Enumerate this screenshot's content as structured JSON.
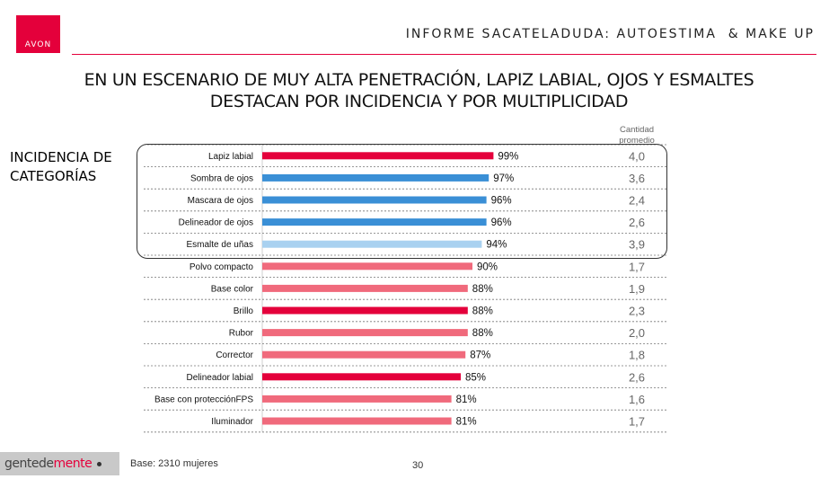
{
  "brand": {
    "logo_text": "AVON",
    "accent": "#e4003b"
  },
  "header": {
    "title": "INFORME SACATELADUDA: AUTOESTIMA  & MAKE UP"
  },
  "main_title": {
    "line1": "EN UN ESCENARIO DE MUY ALTA PENETRACIÓN, LAPIZ LABIAL, OJOS Y ESMALTES",
    "line2": "DESTACAN POR INCIDENCIA Y POR MULTIPLICIDAD"
  },
  "section_label": {
    "line1": "INCIDENCIA DE",
    "line2": "CATEGORÍAS"
  },
  "column_header": {
    "line1": "Cantidad",
    "line2": "promedio"
  },
  "chart_data": {
    "type": "bar",
    "orientation": "horizontal",
    "categories": [
      "Lapiz labial",
      "Sombra de ojos",
      "Mascara de ojos",
      "Delineador de ojos",
      "Esmalte de uñas",
      "Polvo compacto",
      "Base color",
      "Brillo",
      "Rubor",
      "Corrector",
      "Delineador labial",
      "Base con protecciónFPS",
      "Iluminador"
    ],
    "values": [
      99,
      97,
      96,
      96,
      94,
      90,
      88,
      88,
      88,
      87,
      85,
      81,
      81
    ],
    "value_labels": [
      "99%",
      "97%",
      "96%",
      "96%",
      "94%",
      "90%",
      "88%",
      "88%",
      "88%",
      "87%",
      "85%",
      "81%",
      "81%"
    ],
    "cantidad_promedio": [
      "4,0",
      "3,6",
      "2,4",
      "2,6",
      "3,9",
      "1,7",
      "1,9",
      "2,3",
      "2,0",
      "1,8",
      "2,6",
      "1,6",
      "1,7"
    ],
    "bar_colors": [
      "#e4003b",
      "#3a8fd6",
      "#3a8fd6",
      "#3a8fd6",
      "#a9d1f0",
      "#f06a7c",
      "#f06a7c",
      "#e4003b",
      "#f06a7c",
      "#f06a7c",
      "#e4003b",
      "#f06a7c",
      "#f06a7c"
    ],
    "xlim": [
      0,
      100
    ],
    "grid": "dotted row separators",
    "highlight_group": [
      "Lapiz labial",
      "Sombra de ojos",
      "Mascara de ojos",
      "Delineador de ojos",
      "Esmalte de uñas"
    ]
  },
  "footer": {
    "logo_text_a": "gentede",
    "logo_text_b": "mente",
    "base": "Base: 2310 mujeres",
    "page_number": "30"
  }
}
